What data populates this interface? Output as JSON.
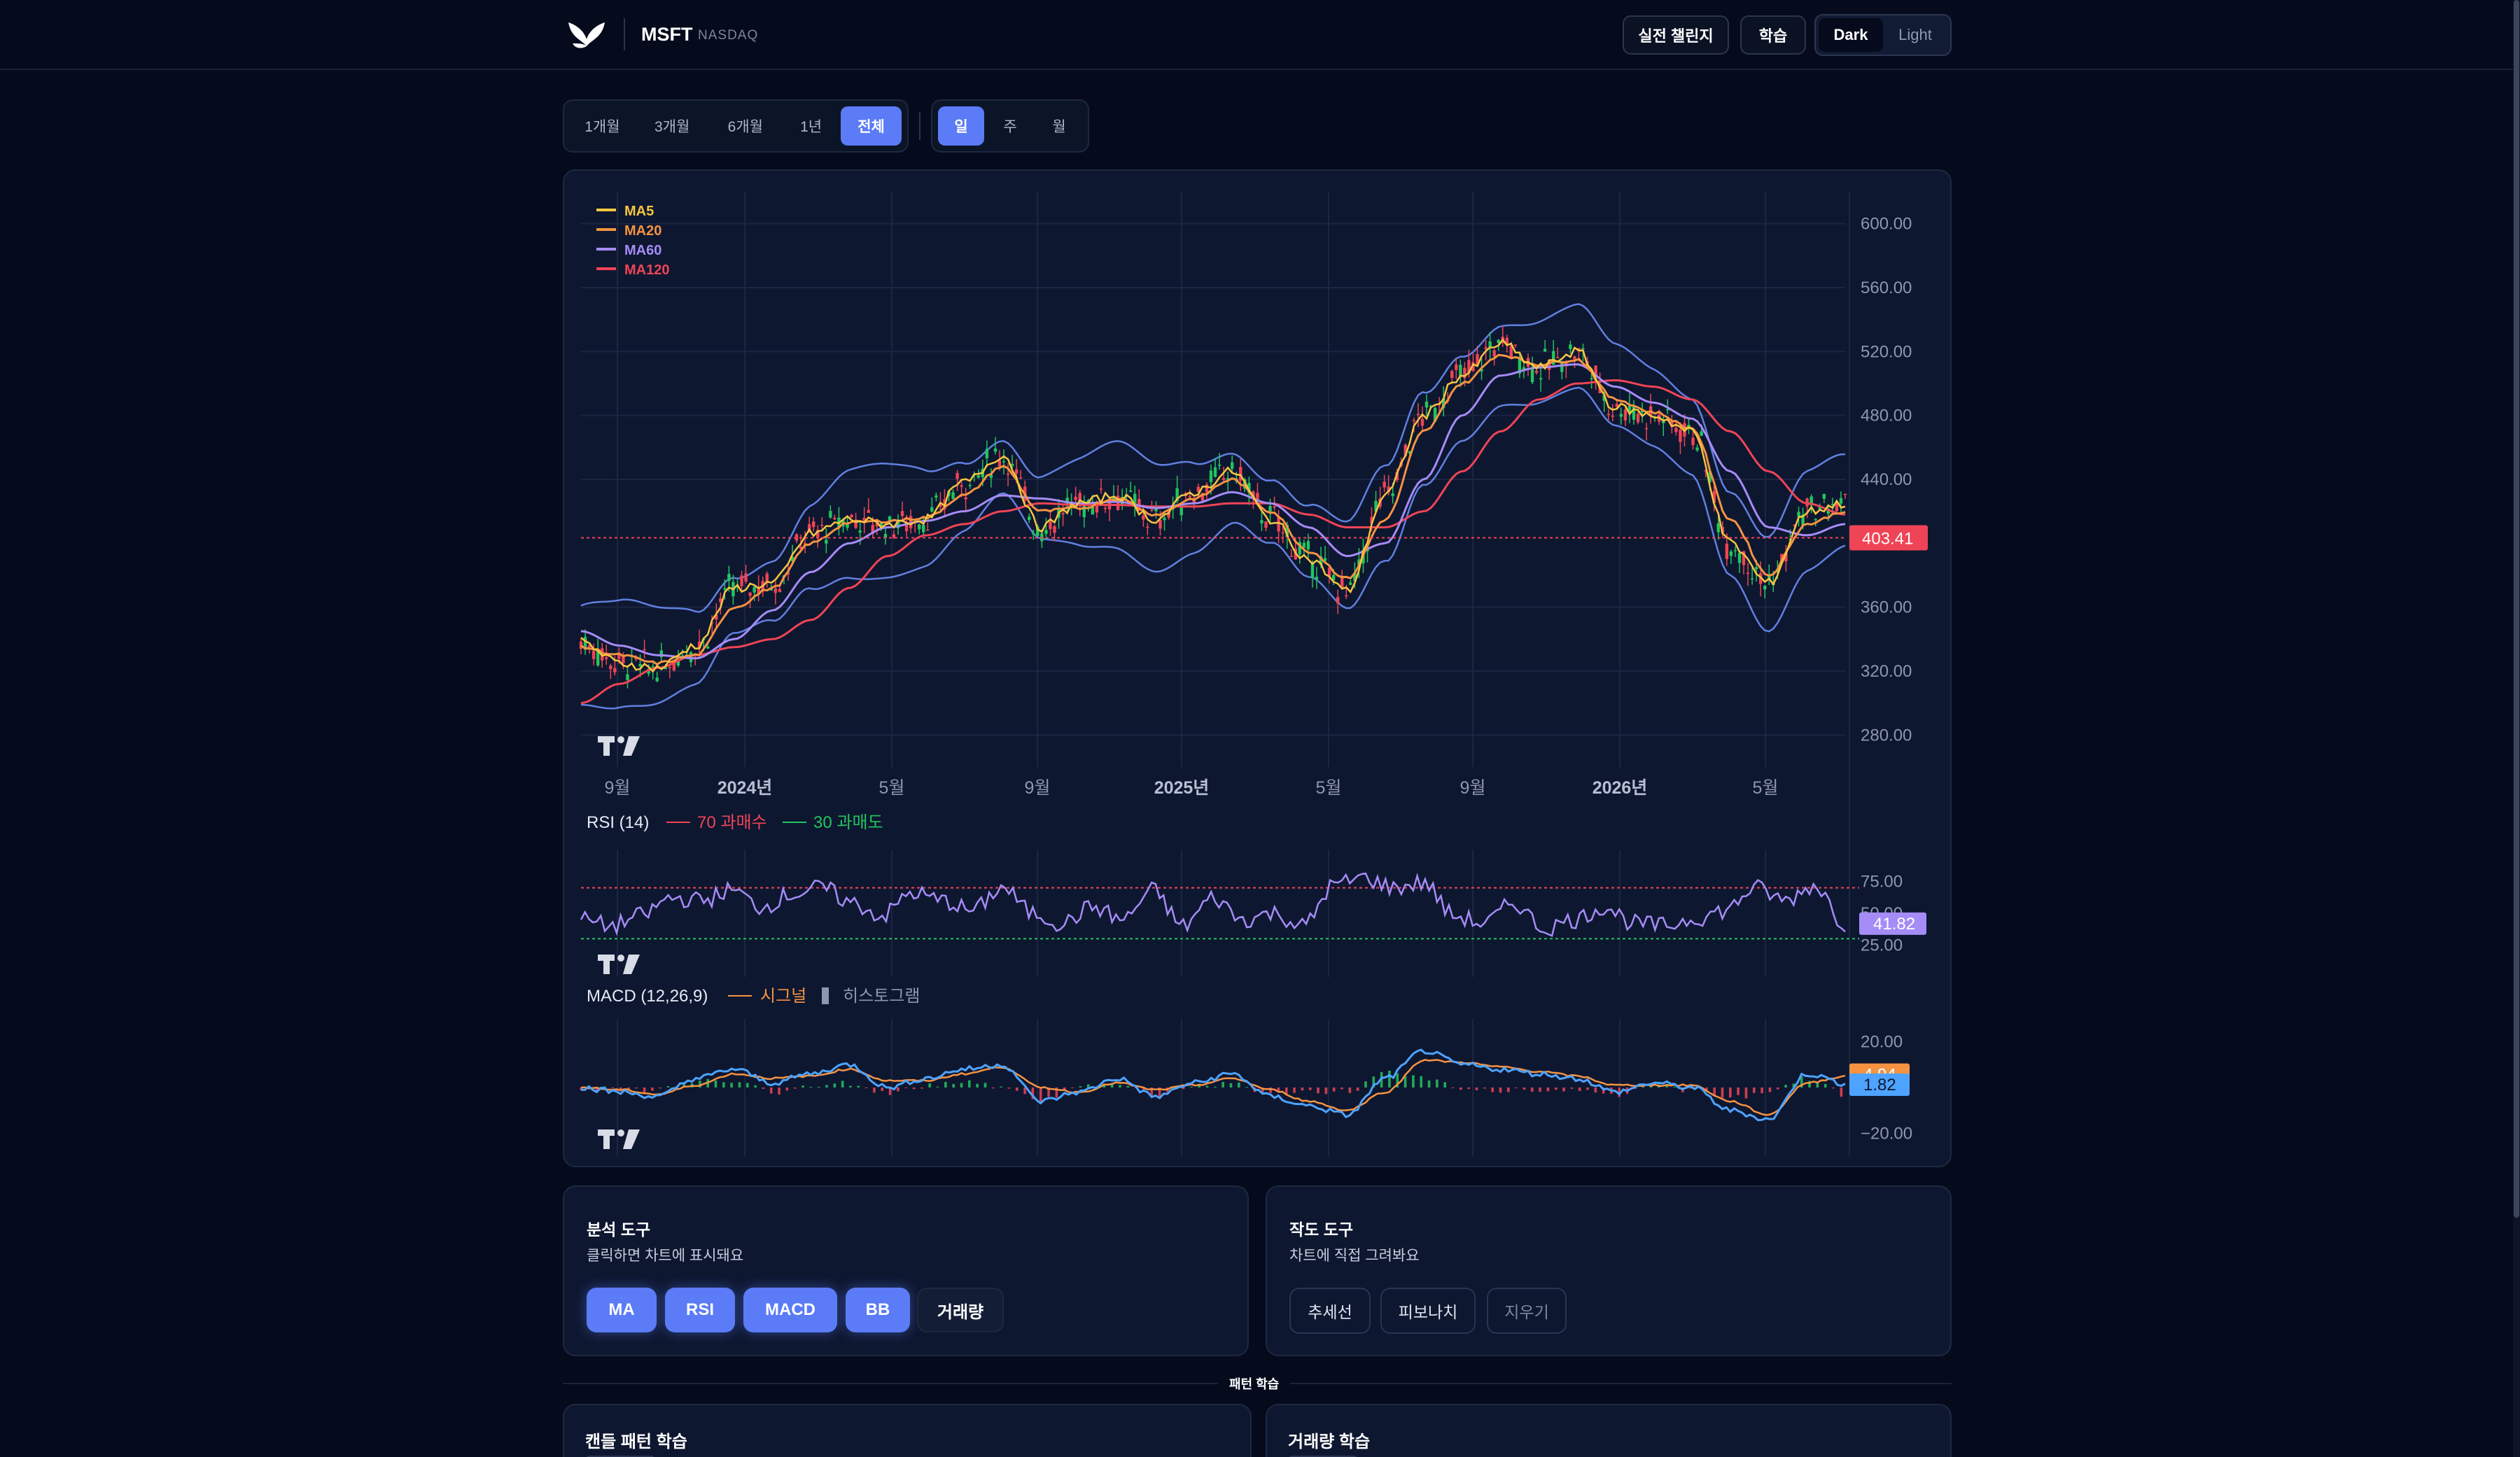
{
  "header": {
    "ticker": "MSFT",
    "exchange": "NASDAQ",
    "challenge_label": "실전 챌린지",
    "learn_label": "학습",
    "theme_dark": "Dark",
    "theme_light": "Light"
  },
  "period_tabs": [
    {
      "label": "1개월",
      "active": false
    },
    {
      "label": "3개월",
      "active": false
    },
    {
      "label": "6개월",
      "active": false
    },
    {
      "label": "1년",
      "active": false
    },
    {
      "label": "전체",
      "active": true
    }
  ],
  "interval_tabs": [
    {
      "label": "일",
      "active": true
    },
    {
      "label": "주",
      "active": false
    },
    {
      "label": "월",
      "active": false
    }
  ],
  "legend": [
    {
      "label": "MA5",
      "color": "#f5c542"
    },
    {
      "label": "MA20",
      "color": "#f59342"
    },
    {
      "label": "MA60",
      "color": "#a58cf7"
    },
    {
      "label": "MA120",
      "color": "#ef4456"
    }
  ],
  "price_axis": [
    "600.00",
    "560.00",
    "520.00",
    "480.00",
    "440.00",
    "360.00",
    "320.00",
    "280.00"
  ],
  "last_price": "403.41",
  "time_axis": [
    {
      "label": "9월",
      "bold": false
    },
    {
      "label": "2024년",
      "bold": true
    },
    {
      "label": "5월",
      "bold": false
    },
    {
      "label": "9월",
      "bold": false
    },
    {
      "label": "2025년",
      "bold": true
    },
    {
      "label": "5월",
      "bold": false
    },
    {
      "label": "9월",
      "bold": false
    },
    {
      "label": "2026년",
      "bold": true
    },
    {
      "label": "5월",
      "bold": false
    }
  ],
  "rsi": {
    "title": "RSI (14)",
    "overbought": "70 과매수",
    "oversold": "30 과매도",
    "axis": [
      "75.00",
      "50.00",
      "25.00"
    ],
    "last": "41.82"
  },
  "macd": {
    "title": "MACD (12,26,9)",
    "signal_label": "시그널",
    "hist_label": "히스토그램",
    "axis": [
      "20.00",
      "−20.00"
    ],
    "signal_last": "4.94",
    "macd_last": "1.82"
  },
  "analysis_tools": {
    "title": "분석 도구",
    "desc": "클릭하면 차트에 표시돼요",
    "buttons": [
      {
        "label": "MA",
        "on": true
      },
      {
        "label": "RSI",
        "on": true
      },
      {
        "label": "MACD",
        "on": true
      },
      {
        "label": "BB",
        "on": true
      },
      {
        "label": "거래량",
        "on": false
      }
    ]
  },
  "drawing_tools": {
    "title": "작도 도구",
    "desc": "차트에 직접 그려봐요",
    "buttons": [
      "추세선",
      "피보나치",
      "지우기"
    ]
  },
  "pattern_section": {
    "label": "패턴 학습",
    "cards": [
      "캔들 패턴 학습",
      "거래량 학습"
    ]
  },
  "colors": {
    "accent": "#5b7cf6",
    "rsi_line": "#a58cf7",
    "macd_line": "#4da3ff",
    "signal_line": "#f59342",
    "up": "#22c55e",
    "down": "#ef4456",
    "bb": "#6f93ff"
  },
  "chart_data": [
    {
      "type": "line",
      "title": "",
      "x": [
        "2023-08",
        "2023-09",
        "2023-10",
        "2023-11",
        "2023-12",
        "2024-01",
        "2024-02",
        "2024-03",
        "2024-04",
        "2024-05",
        "2024-06",
        "2024-07",
        "2024-08",
        "2024-09",
        "2024-10",
        "2024-11",
        "2024-12",
        "2025-01",
        "2025-02",
        "2025-03",
        "2025-04",
        "2025-05",
        "2025-06",
        "2025-07",
        "2025-08",
        "2025-09",
        "2025-10",
        "2025-11",
        "2025-12",
        "2026-01",
        "2026-02",
        "2026-03",
        "2026-04",
        "2026-05"
      ],
      "series": [
        {
          "name": "MA5",
          "values": [
            338,
            325,
            322,
            336,
            372,
            375,
            406,
            415,
            412,
            415,
            438,
            455,
            410,
            425,
            430,
            415,
            432,
            445,
            415,
            390,
            370,
            430,
            480,
            505,
            525,
            510,
            520,
            485,
            480,
            470,
            400,
            375,
            420,
            425
          ]
        },
        {
          "name": "MA20",
          "values": [
            335,
            330,
            325,
            330,
            360,
            372,
            400,
            413,
            414,
            416,
            430,
            448,
            420,
            422,
            428,
            418,
            428,
            440,
            420,
            395,
            378,
            415,
            470,
            500,
            518,
            512,
            515,
            490,
            482,
            472,
            415,
            380,
            412,
            420
          ]
        },
        {
          "name": "MA60",
          "values": [
            345,
            336,
            330,
            328,
            340,
            358,
            382,
            400,
            410,
            414,
            420,
            430,
            428,
            425,
            426,
            422,
            425,
            432,
            425,
            410,
            392,
            400,
            440,
            480,
            505,
            510,
            512,
            498,
            488,
            478,
            445,
            410,
            405,
            412
          ]
        },
        {
          "name": "MA120",
          "values": [
            300,
            312,
            322,
            330,
            335,
            340,
            352,
            372,
            392,
            405,
            412,
            420,
            425,
            424,
            424,
            423,
            423,
            425,
            425,
            418,
            410,
            410,
            420,
            445,
            470,
            490,
            500,
            502,
            498,
            490,
            470,
            445,
            425,
            418
          ]
        }
      ],
      "ylim": [
        260,
        620
      ],
      "last_value": 403.41
    },
    {
      "type": "line",
      "title": "RSI (14)",
      "series": [
        {
          "name": "RSI (14)",
          "values": [
            45,
            40,
            48,
            62,
            60,
            68,
            55,
            65,
            70,
            58,
            48,
            66,
            60,
            52,
            70,
            50,
            42,
            55,
            45,
            68,
            40,
            62,
            45,
            50,
            40,
            72,
            78,
            70,
            74,
            48,
            42,
            58,
            38,
            45,
            55,
            42,
            40,
            46,
            52,
            70,
            60,
            72,
            41.82
          ]
        }
      ],
      "ylim": [
        0,
        100
      ],
      "last_value": 41.82
    },
    {
      "type": "line",
      "title": "MACD (12,26,9)",
      "series": [
        {
          "name": "MACD",
          "values": [
            0,
            -2,
            -4,
            4,
            8,
            2,
            6,
            10,
            0,
            4,
            8,
            10,
            -6,
            -2,
            4,
            -4,
            2,
            6,
            -4,
            -8,
            -12,
            4,
            16,
            10,
            8,
            6,
            4,
            -2,
            2,
            0,
            -10,
            -14,
            6,
            1.82
          ]
        },
        {
          "name": "시그널",
          "values": [
            0,
            -1,
            -3,
            1,
            6,
            4,
            5,
            8,
            3,
            3,
            6,
            9,
            0,
            -2,
            2,
            -1,
            1,
            4,
            -1,
            -6,
            -10,
            -2,
            12,
            11,
            9,
            7,
            5,
            1,
            1,
            1,
            -6,
            -12,
            2,
            4.94
          ]
        }
      ],
      "ylim": [
        -30,
        30
      ]
    }
  ]
}
